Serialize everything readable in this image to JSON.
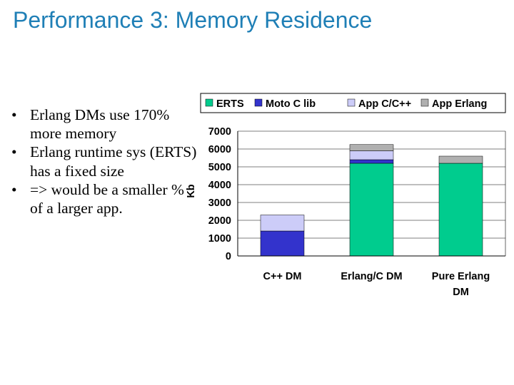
{
  "slide": {
    "title": "Performance 3: Memory Residence",
    "bullets": [
      "Erlang DMs use 170% more memory",
      "Erlang runtime sys (ERTS) has a fixed size",
      "=> would be a smaller % of a larger app."
    ]
  },
  "colors": {
    "title": "#1f7fb6",
    "ERTS": "#00cc8e",
    "Moto C lib": "#3333cc",
    "App C/C++": "#ccccf8",
    "App Erlang": "#b0b0b0"
  },
  "chart_data": {
    "type": "bar",
    "stacked": true,
    "categories": [
      "C++ DM",
      "Erlang/C DM",
      "Pure Erlang DM"
    ],
    "category_lines": [
      [
        "C++ DM"
      ],
      [
        "Erlang/C DM"
      ],
      [
        "Pure Erlang",
        "DM"
      ]
    ],
    "series": [
      {
        "name": "ERTS",
        "values": [
          0,
          5200,
          5200
        ]
      },
      {
        "name": "Moto C lib",
        "values": [
          1400,
          200,
          0
        ]
      },
      {
        "name": "App C/C++",
        "values": [
          900,
          500,
          0
        ]
      },
      {
        "name": "App Erlang",
        "values": [
          0,
          350,
          400
        ]
      }
    ],
    "ylabel": "Kb",
    "xlabel": "",
    "ylim": [
      0,
      7000
    ],
    "yticks": [
      0,
      1000,
      2000,
      3000,
      4000,
      5000,
      6000,
      7000
    ],
    "grid": true,
    "legend": "top"
  }
}
